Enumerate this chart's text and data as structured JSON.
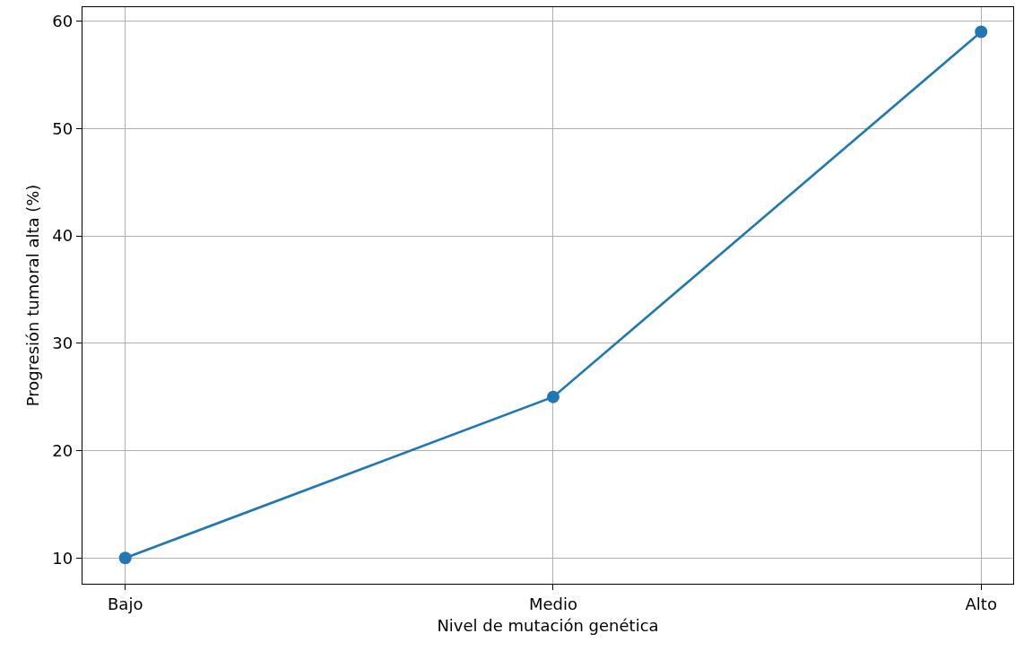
{
  "chart_data": {
    "type": "line",
    "xlabel": "Nivel de mutación genética",
    "ylabel": "Progresión tumoral alta (%)",
    "categories": [
      "Bajo",
      "Medio",
      "Alto"
    ],
    "series": [
      {
        "color": "#1f77b4",
        "values": [
          10,
          25,
          59
        ]
      }
    ],
    "ylim": [
      7.6,
      61.3
    ],
    "yticks": [
      10,
      20,
      30,
      40,
      50,
      60
    ],
    "grid": true,
    "marker": "circle",
    "line_style": "solid"
  }
}
